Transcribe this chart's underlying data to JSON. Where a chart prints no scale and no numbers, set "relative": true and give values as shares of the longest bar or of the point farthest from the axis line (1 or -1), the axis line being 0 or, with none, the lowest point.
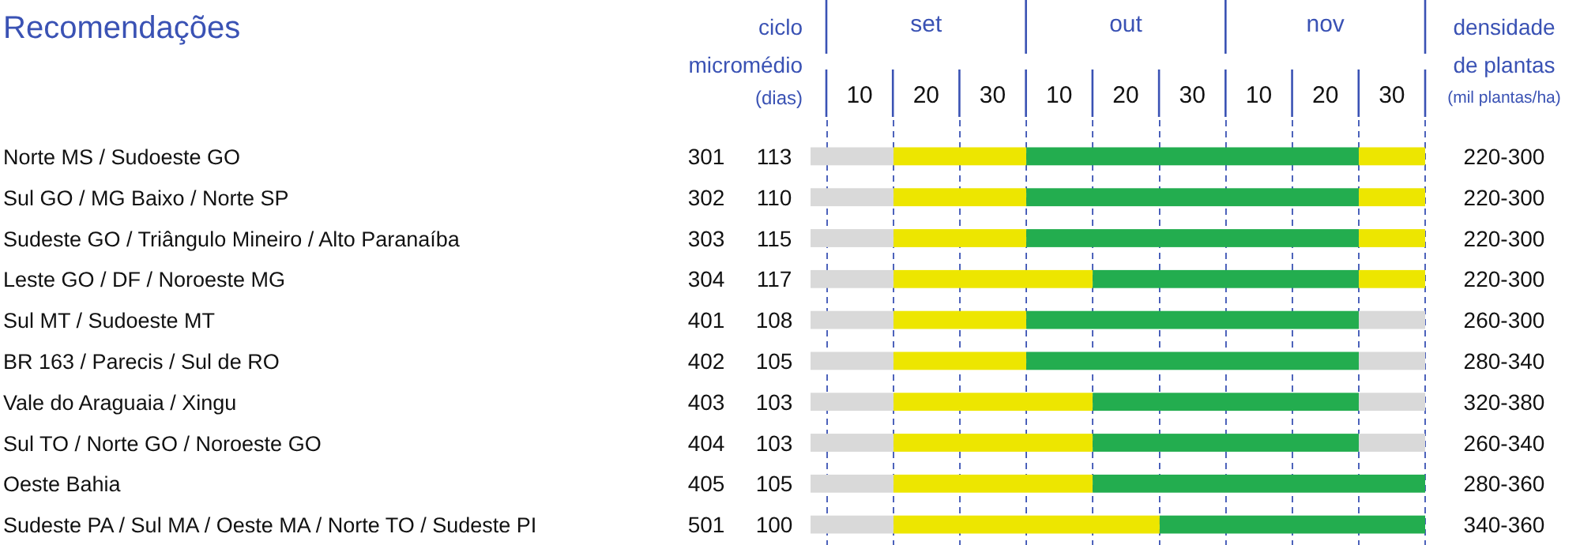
{
  "chart_data": {
    "type": "bar",
    "orientation": "horizontal",
    "stacked": true,
    "relative": true,
    "title": "Recomendações",
    "categories": [
      "Norte MS /  Sudoeste GO",
      "Sul GO / MG Baixo / Norte SP",
      "Sudeste GO / Triângulo Mineiro / Alto Paranaíba",
      "Leste GO / DF / Noroeste MG",
      "Sul MT / Sudoeste MT",
      "BR 163 / Parecis / Sul de RO",
      "Vale do Araguaia / Xingu",
      "Sul TO / Norte GO / Noroeste GO",
      "Oeste Bahia",
      "Sudeste PA / Sul MA / Oeste MA / Norte TO / Sudeste PI"
    ],
    "series": [
      {
        "color": "#d9d9d9",
        "values": [
          0.135,
          0.135,
          0.135,
          0.135,
          0.135,
          0.135,
          0.135,
          0.135,
          0.135,
          0.135
        ]
      },
      {
        "color": "#ede600",
        "values": [
          0.216,
          0.216,
          0.216,
          0.324,
          0.216,
          0.216,
          0.324,
          0.324,
          0.324,
          0.433
        ]
      },
      {
        "color": "#23ad4f",
        "values": [
          0.541,
          0.541,
          0.541,
          0.433,
          0.541,
          0.541,
          0.433,
          0.433,
          0.541,
          0.432
        ]
      },
      {
        "color": "#ede600",
        "values": [
          0.108,
          0.108,
          0.108,
          0.108,
          0,
          0,
          0,
          0,
          0,
          0
        ]
      },
      {
        "color": "#d9d9d9",
        "values": [
          0,
          0,
          0,
          0,
          0.108,
          0.108,
          0.108,
          0.108,
          0,
          0
        ]
      }
    ],
    "ref_lines": [
      {
        "axis": "x",
        "value": 0.027,
        "color": "#3a52b4",
        "line_style": "dashed"
      },
      {
        "axis": "x",
        "value": 0.135,
        "color": "#3a52b4",
        "line_style": "dashed"
      },
      {
        "axis": "x",
        "value": 0.243,
        "color": "#3a52b4",
        "line_style": "dashed"
      },
      {
        "axis": "x",
        "value": 0.351,
        "color": "#3a52b4",
        "line_style": "dashed"
      },
      {
        "axis": "x",
        "value": 0.459,
        "color": "#3a52b4",
        "line_style": "dashed"
      },
      {
        "axis": "x",
        "value": 0.568,
        "color": "#3a52b4",
        "line_style": "dashed"
      },
      {
        "axis": "x",
        "value": 0.676,
        "color": "#3a52b4",
        "line_style": "dashed"
      },
      {
        "axis": "x",
        "value": 0.784,
        "color": "#3a52b4",
        "line_style": "dashed"
      },
      {
        "axis": "x",
        "value": 0.892,
        "color": "#3a52b4",
        "line_style": "dashed"
      },
      {
        "axis": "x",
        "value": 1.0,
        "color": "#3a52b4",
        "line_style": "dashed"
      }
    ],
    "annotations": [
      "micro",
      "ciclo",
      "médio",
      "(dias)",
      "densidade",
      "de plantas",
      "(mil plantas/ha)",
      "set",
      "out",
      "nov",
      "10",
      "20",
      "30",
      "10",
      "20",
      "30",
      "10",
      "20",
      "30",
      "301",
      "113",
      "220-300",
      "302",
      "110",
      "220-300",
      "303",
      "115",
      "220-300",
      "304",
      "117",
      "220-300",
      "401",
      "108",
      "260-300",
      "402",
      "105",
      "280-340",
      "403",
      "103",
      "320-380",
      "404",
      "103",
      "260-340",
      "405",
      "105",
      "280-360",
      "501",
      "100",
      "340-360"
    ]
  }
}
